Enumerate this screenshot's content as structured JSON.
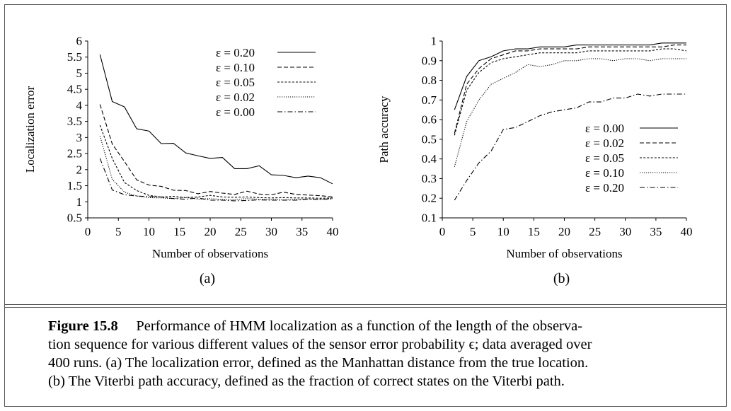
{
  "chart_data": [
    {
      "type": "line",
      "panel_label": "(a)",
      "title": "",
      "xlabel": "Number of observations",
      "ylabel": "Localization error",
      "xlim": [
        0,
        40
      ],
      "ylim": [
        0.5,
        6
      ],
      "xticks": [
        0,
        5,
        10,
        15,
        20,
        25,
        30,
        35,
        40
      ],
      "yticks": [
        0.5,
        1,
        1.5,
        2,
        2.5,
        3,
        3.5,
        4,
        4.5,
        5,
        5.5,
        6
      ],
      "grid": false,
      "legend_position": "top-right",
      "x": [
        2,
        4,
        6,
        8,
        10,
        12,
        14,
        16,
        18,
        20,
        22,
        24,
        26,
        28,
        30,
        32,
        34,
        36,
        38,
        40
      ],
      "series": [
        {
          "name": "ε = 0.20",
          "dash": "solid",
          "values": [
            5.58,
            4.12,
            3.95,
            3.27,
            3.2,
            2.81,
            2.82,
            2.52,
            2.43,
            2.35,
            2.38,
            2.03,
            2.03,
            2.12,
            1.84,
            1.82,
            1.75,
            1.8,
            1.75,
            1.56
          ]
        },
        {
          "name": "ε = 0.10",
          "dash": "dashed",
          "values": [
            4.03,
            2.8,
            2.25,
            1.68,
            1.52,
            1.48,
            1.36,
            1.35,
            1.25,
            1.32,
            1.27,
            1.23,
            1.33,
            1.24,
            1.22,
            1.3,
            1.23,
            1.21,
            1.19,
            1.15
          ]
        },
        {
          "name": "ε = 0.05",
          "dash": "dotted-short",
          "values": [
            3.38,
            2.35,
            1.6,
            1.35,
            1.2,
            1.15,
            1.17,
            1.13,
            1.15,
            1.2,
            1.15,
            1.14,
            1.15,
            1.13,
            1.12,
            1.13,
            1.12,
            1.12,
            1.11,
            1.12
          ]
        },
        {
          "name": "ε = 0.02",
          "dash": "dotted",
          "values": [
            3.05,
            1.7,
            1.3,
            1.18,
            1.13,
            1.12,
            1.1,
            1.14,
            1.08,
            1.1,
            1.07,
            1.07,
            1.1,
            1.08,
            1.07,
            1.06,
            1.07,
            1.09,
            1.08,
            1.1
          ]
        },
        {
          "name": "ε = 0.00",
          "dash": "dashdot",
          "values": [
            2.35,
            1.37,
            1.22,
            1.18,
            1.16,
            1.15,
            1.1,
            1.08,
            1.12,
            1.05,
            1.05,
            1.03,
            1.04,
            1.06,
            1.05,
            1.05,
            1.05,
            1.08,
            1.07,
            1.09
          ]
        }
      ]
    },
    {
      "type": "line",
      "panel_label": "(b)",
      "title": "",
      "xlabel": "Number of observations",
      "ylabel": "Path accuracy",
      "xlim": [
        0,
        40
      ],
      "ylim": [
        0.1,
        1
      ],
      "xticks": [
        0,
        5,
        10,
        15,
        20,
        25,
        30,
        35,
        40
      ],
      "yticks": [
        0.1,
        0.2,
        0.3,
        0.4,
        0.5,
        0.6,
        0.7,
        0.8,
        0.9,
        1
      ],
      "grid": false,
      "legend_position": "bottom-right",
      "x": [
        2,
        4,
        6,
        8,
        10,
        12,
        14,
        16,
        18,
        20,
        22,
        24,
        26,
        28,
        30,
        32,
        34,
        36,
        38,
        40
      ],
      "series": [
        {
          "name": "ε = 0.00",
          "dash": "solid",
          "values": [
            0.65,
            0.82,
            0.9,
            0.92,
            0.95,
            0.96,
            0.96,
            0.97,
            0.97,
            0.97,
            0.98,
            0.98,
            0.98,
            0.98,
            0.98,
            0.98,
            0.98,
            0.99,
            0.99,
            0.99
          ]
        },
        {
          "name": "ε = 0.02",
          "dash": "dashed",
          "values": [
            0.53,
            0.78,
            0.86,
            0.91,
            0.93,
            0.95,
            0.95,
            0.96,
            0.96,
            0.96,
            0.96,
            0.97,
            0.97,
            0.97,
            0.97,
            0.97,
            0.97,
            0.97,
            0.98,
            0.98
          ]
        },
        {
          "name": "ε = 0.05",
          "dash": "dotted-short",
          "values": [
            0.52,
            0.75,
            0.84,
            0.89,
            0.91,
            0.92,
            0.93,
            0.94,
            0.94,
            0.94,
            0.94,
            0.95,
            0.95,
            0.95,
            0.95,
            0.95,
            0.95,
            0.96,
            0.96,
            0.95
          ]
        },
        {
          "name": "ε = 0.10",
          "dash": "dotted",
          "values": [
            0.36,
            0.59,
            0.7,
            0.78,
            0.81,
            0.84,
            0.88,
            0.87,
            0.88,
            0.9,
            0.9,
            0.91,
            0.91,
            0.9,
            0.91,
            0.91,
            0.9,
            0.91,
            0.91,
            0.91
          ]
        },
        {
          "name": "ε = 0.20",
          "dash": "dashdot",
          "values": [
            0.19,
            0.29,
            0.38,
            0.44,
            0.55,
            0.56,
            0.59,
            0.62,
            0.64,
            0.65,
            0.66,
            0.69,
            0.69,
            0.71,
            0.71,
            0.73,
            0.72,
            0.73,
            0.73,
            0.73
          ]
        }
      ]
    }
  ],
  "caption": {
    "figure_label": "Figure 15.8",
    "lines": [
      "Performance of HMM localization as a function of the length of the observa-",
      "tion sequence for various different values of the sensor error probability ϵ; data averaged over",
      "400 runs.  (a) The localization error, defined as the Manhattan distance from the true location.",
      "(b) The Viterbi path accuracy, defined as the fraction of correct states on the Viterbi path."
    ]
  }
}
